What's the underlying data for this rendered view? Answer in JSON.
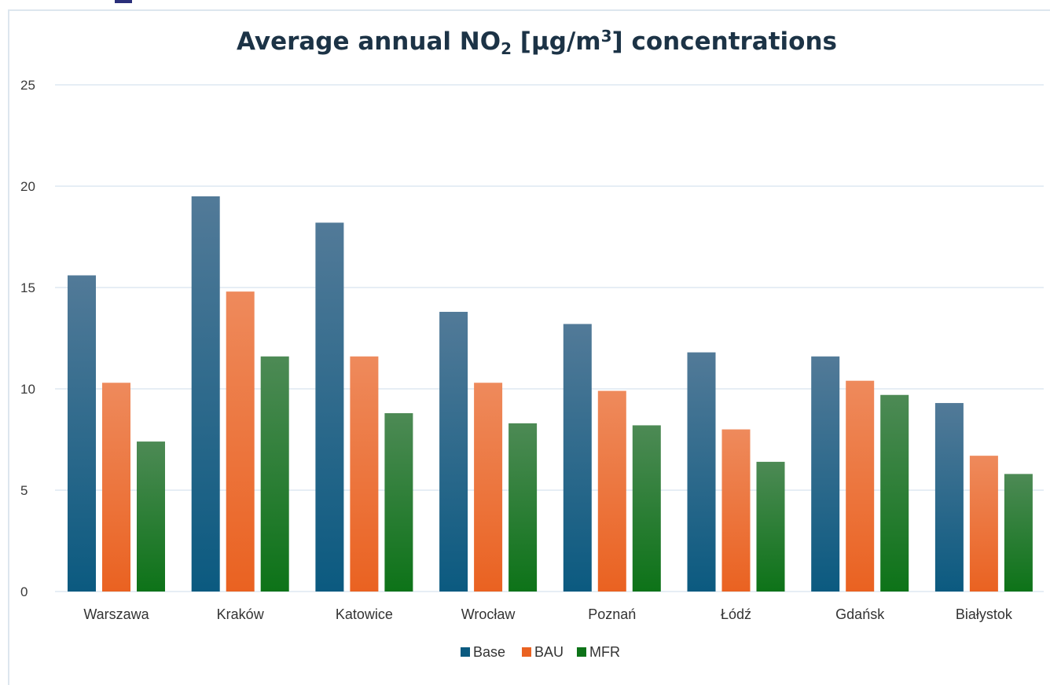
{
  "chart_data": {
    "type": "bar",
    "title": {
      "prefix": "Average annual NO",
      "sub": "2",
      "middle": " [µg/m",
      "sup": "3",
      "suffix": "]  concentrations"
    },
    "xlabel": "",
    "ylabel": "",
    "ylim": [
      0,
      25
    ],
    "yticks": [
      "0",
      "5",
      "10",
      "15",
      "20",
      "25"
    ],
    "grid": true,
    "legend_position": "bottom",
    "categories": [
      "Warszawa",
      "Kraków",
      "Katowice",
      "Wrocław",
      "Poznań",
      "Łódź",
      "Gdańsk",
      "Białystok"
    ],
    "series": [
      {
        "name": "Base",
        "values": [
          15.6,
          19.5,
          18.2,
          13.8,
          13.2,
          11.8,
          11.6,
          9.3
        ]
      },
      {
        "name": "BAU",
        "values": [
          10.3,
          14.8,
          11.6,
          10.3,
          9.9,
          8.0,
          10.4,
          6.7
        ]
      },
      {
        "name": "MFR",
        "values": [
          7.4,
          11.6,
          8.8,
          8.3,
          8.2,
          6.4,
          9.7,
          5.8
        ]
      }
    ],
    "colors": {
      "Base": {
        "top": "#527a98",
        "bottom": "#0b5a80"
      },
      "BAU": {
        "top": "#ee8a5c",
        "bottom": "#ea6221"
      },
      "MFR": {
        "top": "#4d8a55",
        "bottom": "#0d7318"
      }
    },
    "gridline_color": "#d6e4ef"
  }
}
